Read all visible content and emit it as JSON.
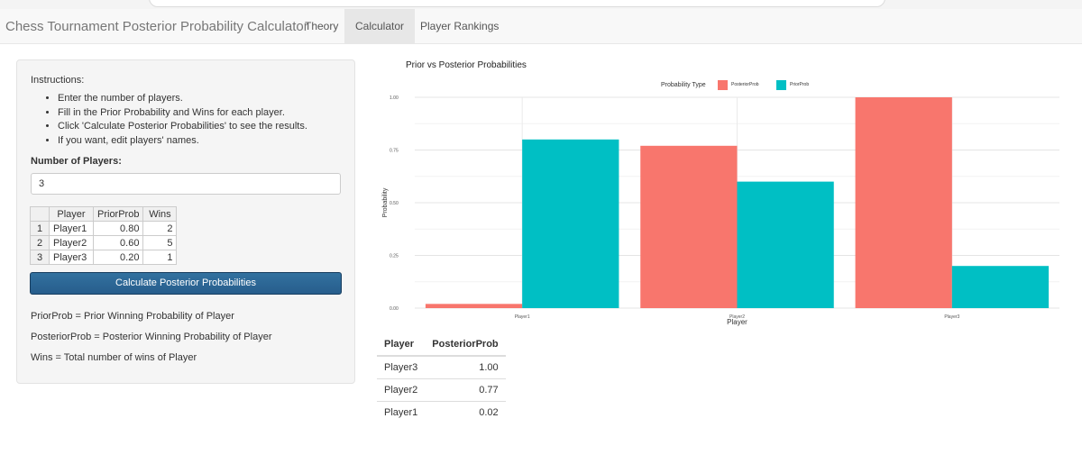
{
  "navbar": {
    "brand": "Chess Tournament Posterior Probability Calculator",
    "tabs": [
      "Theory",
      "Calculator",
      "Player Rankings"
    ],
    "active_tab": "Calculator"
  },
  "sidebar": {
    "instructions_title": "Instructions:",
    "instructions": [
      "Enter the number of players.",
      "Fill in the Prior Probability and Wins for each player.",
      "Click 'Calculate Posterior Probabilities' to see the results.",
      "If you want, edit players' names."
    ],
    "num_players_label": "Number of Players:",
    "num_players_value": "3",
    "table": {
      "headers": [
        "Player",
        "PriorProb",
        "Wins"
      ],
      "rows": [
        {
          "row": "1",
          "player": "Player1",
          "prior": "0.80",
          "wins": "2"
        },
        {
          "row": "2",
          "player": "Player2",
          "prior": "0.60",
          "wins": "5"
        },
        {
          "row": "3",
          "player": "Player3",
          "prior": "0.20",
          "wins": "1"
        }
      ]
    },
    "calculate_button": "Calculate Posterior Probabilities",
    "notes": [
      "PriorProb = Prior Winning Probability of Player",
      "PosteriorProb = Posterior Winning Probability of Player",
      "Wins = Total number of wins of Player"
    ]
  },
  "colors": {
    "posterior": "#f8766d",
    "prior": "#00bfc4",
    "button": "#2e6da4"
  },
  "chart_data": {
    "type": "bar",
    "title": "Prior vs Posterior Probabilities",
    "xlabel": "Player",
    "ylabel": "Probability",
    "categories": [
      "Player1",
      "Player2",
      "Player3"
    ],
    "legend_title": "Probability Type",
    "legend_position": "top",
    "series": [
      {
        "name": "PosteriorProb",
        "values": [
          0.02,
          0.77,
          1.0
        ]
      },
      {
        "name": "PriorProb",
        "values": [
          0.8,
          0.6,
          0.2
        ]
      }
    ],
    "yticks": [
      "0.00",
      "0.25",
      "0.50",
      "0.75",
      "1.00"
    ],
    "ylim": [
      0,
      1
    ],
    "grid": true
  },
  "results": {
    "headers": [
      "Player",
      "PosteriorProb"
    ],
    "rows": [
      {
        "player": "Player3",
        "posterior": "1.00"
      },
      {
        "player": "Player2",
        "posterior": "0.77"
      },
      {
        "player": "Player1",
        "posterior": "0.02"
      }
    ]
  }
}
